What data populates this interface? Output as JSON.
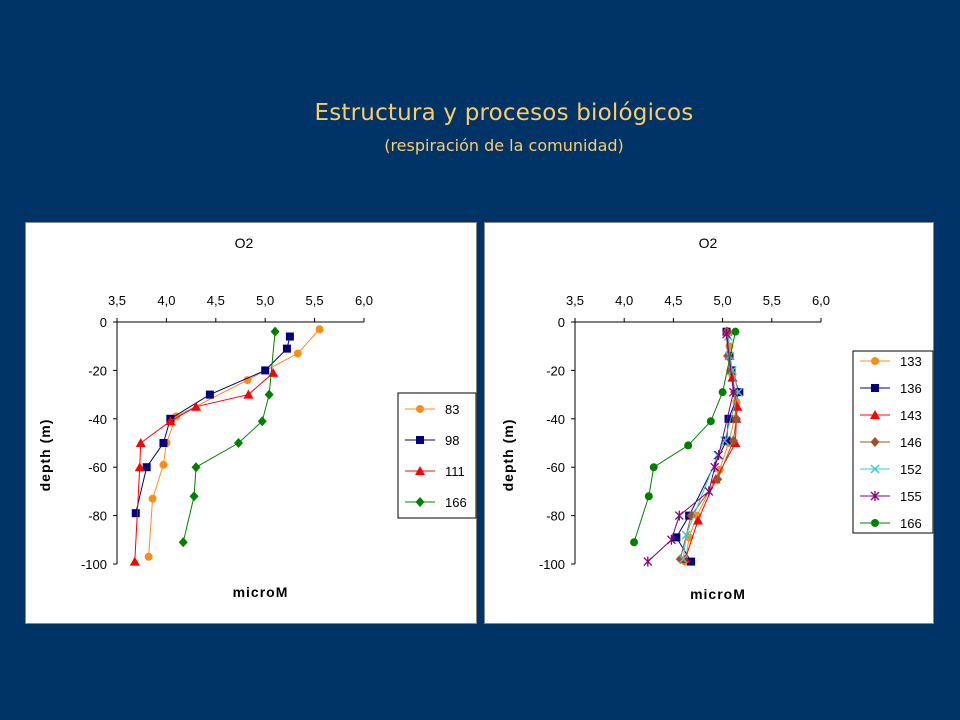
{
  "slide": {
    "title": "Estructura y procesos biológicos",
    "subtitle": "(respiración de la comunidad)"
  },
  "chart_data": [
    {
      "type": "line",
      "title": "O2",
      "xlabel": "microM",
      "ylabel": "depth (m)",
      "xlim": [
        3.5,
        6.0
      ],
      "ylim": [
        -100,
        0
      ],
      "xticks": [
        "3,5",
        "4,0",
        "4,5",
        "5,0",
        "5,5",
        "6,0"
      ],
      "yticks": [
        "0",
        "-20",
        "-40",
        "-60",
        "-80",
        "-100"
      ],
      "x_axis_position": "top",
      "grid": false,
      "legend": "right",
      "series": [
        {
          "name": "83",
          "color": "#ff8c1a",
          "marker": "circle",
          "x": [
            5.55,
            5.33,
            4.82,
            4.1,
            4.0,
            3.97,
            3.86,
            3.82
          ],
          "y": [
            -3,
            -13,
            -24,
            -39,
            -50,
            -59,
            -73,
            -97
          ]
        },
        {
          "name": "98",
          "color": "#000080",
          "marker": "square",
          "x": [
            5.25,
            5.22,
            5.0,
            4.44,
            4.04,
            3.97,
            3.8,
            3.69
          ],
          "y": [
            -6,
            -11,
            -20,
            -30,
            -40,
            -50,
            -60,
            -79
          ]
        },
        {
          "name": "111",
          "color": "#ff0000",
          "marker": "triangle",
          "x": [
            5.08,
            4.83,
            4.3,
            4.04,
            3.74,
            3.73,
            3.68
          ],
          "y": [
            -21,
            -30,
            -35,
            -41,
            -50,
            -60,
            -99
          ]
        },
        {
          "name": "166",
          "color": "#008000",
          "marker": "diamond",
          "x": [
            5.1,
            5.04,
            4.97,
            4.73,
            4.3,
            4.28,
            4.17
          ],
          "y": [
            -4,
            -30,
            -41,
            -50,
            -60,
            -72,
            -91
          ]
        }
      ]
    },
    {
      "type": "line",
      "title": "O2",
      "xlabel": "microM",
      "ylabel": "depth (m)",
      "xlim": [
        3.5,
        6.0
      ],
      "ylim": [
        -100,
        0
      ],
      "xticks": [
        "3,5",
        "4,0",
        "4,5",
        "5,0",
        "5,5",
        "6,0"
      ],
      "yticks": [
        "0",
        "-20",
        "-40",
        "-60",
        "-80",
        "-100"
      ],
      "x_axis_position": "top",
      "grid": false,
      "legend": "right",
      "series": [
        {
          "name": "133",
          "color": "#ff8c1a",
          "marker": "circle",
          "x": [
            5.05,
            5.07,
            5.1,
            5.14,
            5.12,
            5.06,
            4.97,
            4.74,
            4.66,
            4.62
          ],
          "y": [
            -4,
            -10,
            -22,
            -33,
            -40,
            -50,
            -61,
            -80,
            -89,
            -99
          ]
        },
        {
          "name": "136",
          "color": "#000080",
          "marker": "square",
          "x": [
            5.04,
            5.07,
            5.09,
            5.17,
            5.06,
            5.04,
            4.66,
            4.53,
            4.68
          ],
          "y": [
            -4,
            -14,
            -20,
            -29,
            -40,
            -49,
            -80,
            -89,
            -99
          ]
        },
        {
          "name": "143",
          "color": "#ff0000",
          "marker": "triangle",
          "x": [
            5.05,
            5.07,
            5.1,
            5.15,
            5.14,
            5.13,
            4.93,
            4.75,
            4.62
          ],
          "y": [
            -4,
            -14,
            -23,
            -35,
            -40,
            -50,
            -65,
            -82,
            -98
          ]
        },
        {
          "name": "146",
          "color": "#a0522d",
          "marker": "diamond",
          "x": [
            5.04,
            5.05,
            5.08,
            5.12,
            5.14,
            5.11,
            4.95,
            4.68,
            4.57
          ],
          "y": [
            -4,
            -14,
            -20,
            -29,
            -40,
            -49,
            -65,
            -80,
            -98
          ]
        },
        {
          "name": "152",
          "color": "#33cccc",
          "marker": "x",
          "x": [
            5.06,
            5.07,
            5.1,
            5.16,
            5.02,
            4.95,
            4.63,
            4.6
          ],
          "y": [
            -6,
            -14,
            -20,
            -29,
            -49,
            -55,
            -88,
            -98
          ]
        },
        {
          "name": "155",
          "color": "#800080",
          "marker": "star",
          "x": [
            5.04,
            5.11,
            4.96,
            4.92,
            4.86,
            4.56,
            4.48,
            4.24
          ],
          "y": [
            -5,
            -29,
            -55,
            -60,
            -70,
            -80,
            -90,
            -99
          ]
        },
        {
          "name": "166",
          "color": "#008000",
          "marker": "circle",
          "x": [
            5.13,
            5.0,
            4.88,
            4.65,
            4.3,
            4.25,
            4.1
          ],
          "y": [
            -4,
            -29,
            -41,
            -51,
            -60,
            -72,
            -91
          ]
        }
      ]
    }
  ]
}
